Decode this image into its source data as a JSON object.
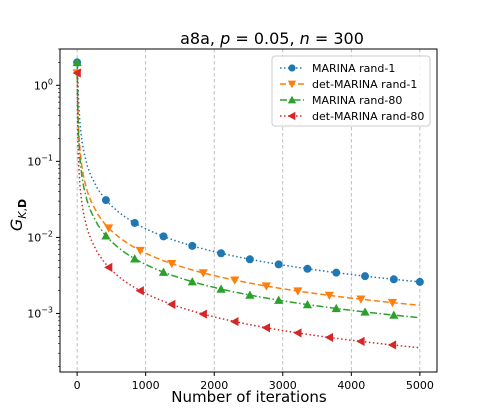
{
  "chart_data": {
    "type": "line",
    "title": "a8a, p = 0.05, n = 300",
    "xlabel": "Number of iterations",
    "ylabel": "G_{K,D}",
    "yscale": "log",
    "xlim": [
      -250,
      5250
    ],
    "ylim": [
      0.00017,
      3.0
    ],
    "x_ticks": [
      0,
      1000,
      2000,
      3000,
      4000,
      5000
    ],
    "x_tick_labels": [
      "0",
      "1000",
      "2000",
      "3000",
      "4000",
      "5000"
    ],
    "y_ticks": [
      0.001,
      0.01,
      0.1,
      1
    ],
    "y_tick_labels": [
      "10^-3",
      "10^-2",
      "10^-1",
      "10^0"
    ],
    "grid": "x-dashed",
    "legend_position": "top-right",
    "series": [
      {
        "name": "MARINA rand-1",
        "color": "#1f77b4",
        "marker": "circle",
        "linestyle": "dotted",
        "curve": {
          "a": 13.0,
          "p": 1.0,
          "c": 0.0
        },
        "start": [
          0,
          2.0
        ],
        "markers_x": [
          0,
          420,
          840,
          1260,
          1680,
          2100,
          2520,
          2940,
          3360,
          3780,
          4200,
          4620,
          5000
        ]
      },
      {
        "name": "det-MARINA rand-1",
        "color": "#ff7f0e",
        "marker": "triangle-down",
        "linestyle": "dashed",
        "curve": {
          "a": 5.4,
          "p": 0.98,
          "c": 0.0
        },
        "start": [
          0,
          1.45
        ],
        "markers_x": [
          0,
          460,
          920,
          1380,
          1840,
          2300,
          2760,
          3220,
          3680,
          4140,
          4600
        ]
      },
      {
        "name": "MARINA rand-80",
        "color": "#2ca02c",
        "marker": "triangle-up",
        "linestyle": "dashdot",
        "curve": {
          "a": 4.4,
          "p": 1.0,
          "c": 0.0
        },
        "start": [
          0,
          2.0
        ],
        "markers_x": [
          0,
          420,
          840,
          1260,
          1680,
          2100,
          2520,
          2940,
          3360,
          3780,
          4200,
          4620
        ]
      },
      {
        "name": "det-MARINA rand-80",
        "color": "#d62728",
        "marker": "triangle-left",
        "linestyle": "dotted",
        "curve": {
          "a": 2.1,
          "p": 1.02,
          "c": 0.0
        },
        "start": [
          0,
          1.45
        ],
        "markers_x": [
          0,
          460,
          920,
          1380,
          1840,
          2300,
          2760,
          3220,
          3680,
          4140,
          4600
        ]
      }
    ]
  }
}
